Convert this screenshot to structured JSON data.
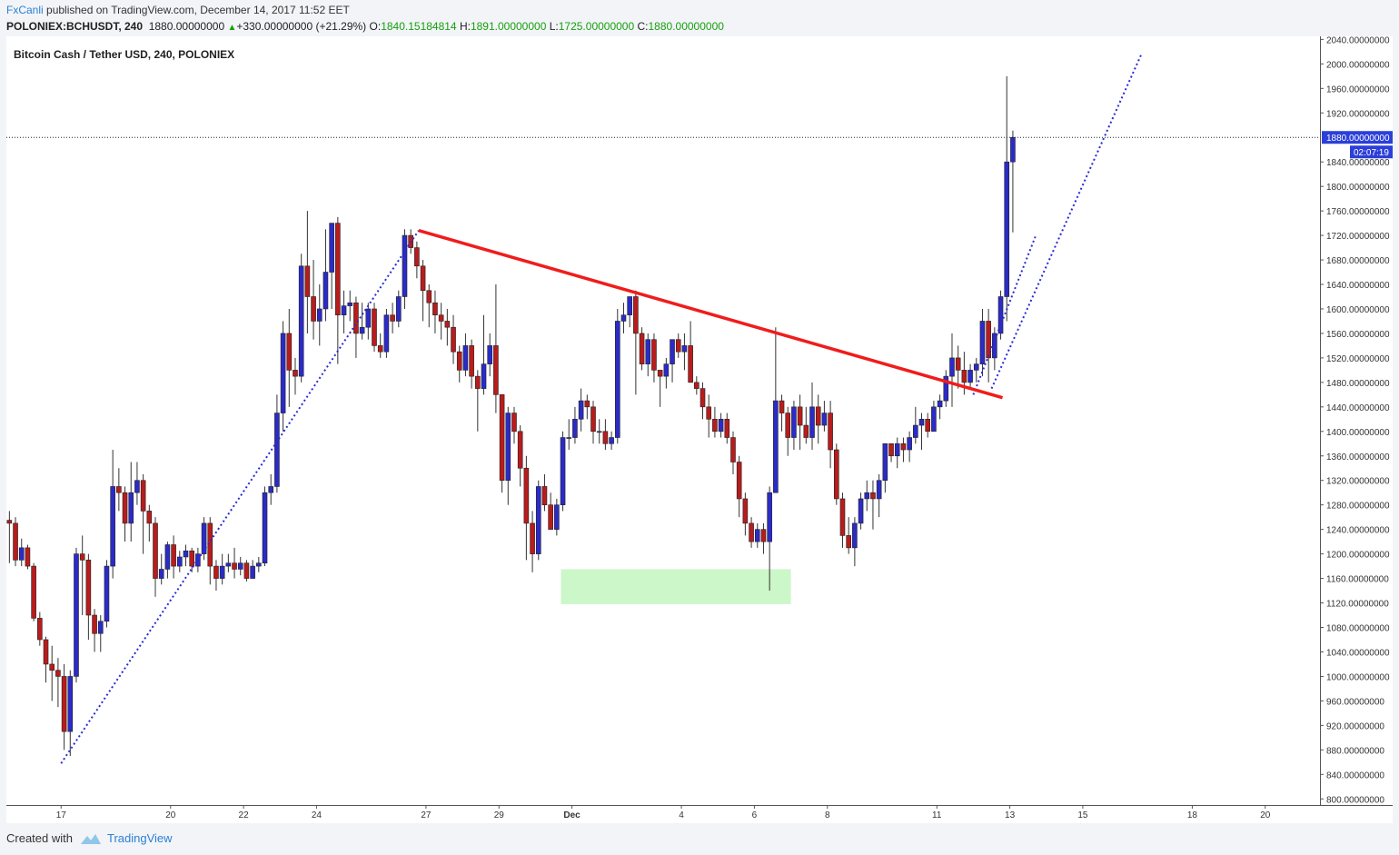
{
  "header": {
    "author": "FxCanli",
    "published_text": "published on TradingView.com, December 14, 2017 11:52 EET",
    "symbol": "POLONIEX:BCHUSDT, 240",
    "last": "1880.00000000",
    "change": "+330.00000000 (+21.29%)",
    "open_label": "O:",
    "open": "1840.15184814",
    "high_label": "H:",
    "high": "1891.00000000",
    "low_label": "L:",
    "low": "1725.00000000",
    "close_label": "C:",
    "close": "1880.00000000"
  },
  "footer": {
    "created_with": "Created with",
    "brand": "TradingView"
  },
  "colors": {
    "up": "#2b2bc8",
    "down": "#b81c1c",
    "trendline": "#f01c1c",
    "dotted": "#2a2ad6",
    "zone": "#ccf7c8",
    "price_tag": "#2c3fd8"
  },
  "chart_data": {
    "type": "candlestick",
    "title": "Bitcoin Cash / Tether USD, 240, POLONIEX",
    "xlabel": "",
    "ylabel": "",
    "ylim": [
      790,
      2045
    ],
    "x_range_days": [
      15.5,
      51.5
    ],
    "x_ticks": [
      {
        "label": "17",
        "d": 17
      },
      {
        "label": "20",
        "d": 20
      },
      {
        "label": "22",
        "d": 22
      },
      {
        "label": "24",
        "d": 24
      },
      {
        "label": "27",
        "d": 27
      },
      {
        "label": "29",
        "d": 29
      },
      {
        "label": "Dec",
        "d": 31
      },
      {
        "label": "4",
        "d": 34
      },
      {
        "label": "6",
        "d": 36
      },
      {
        "label": "8",
        "d": 38
      },
      {
        "label": "11",
        "d": 41
      },
      {
        "label": "13",
        "d": 43
      },
      {
        "label": "15",
        "d": 45
      },
      {
        "label": "18",
        "d": 48
      },
      {
        "label": "20",
        "d": 50
      }
    ],
    "y_ticks": [
      "2040.00000000",
      "2000.00000000",
      "1960.00000000",
      "1920.00000000",
      "1840.00000000",
      "1800.00000000",
      "1760.00000000",
      "1720.00000000",
      "1680.00000000",
      "1640.00000000",
      "1600.00000000",
      "1560.00000000",
      "1520.00000000",
      "1480.00000000",
      "1440.00000000",
      "1400.00000000",
      "1360.00000000",
      "1320.00000000",
      "1280.00000000",
      "1240.00000000",
      "1200.00000000",
      "1160.00000000",
      "1120.00000000",
      "1080.00000000",
      "1040.00000000",
      "1000.00000000",
      "960.00000000",
      "920.00000000",
      "880.00000000",
      "840.00000000",
      "800.00000000"
    ],
    "last_price": 1880,
    "last_price_label": "1880.00000000",
    "countdown": "02:07:19",
    "candles": [
      [
        1255,
        1250,
        1270,
        1185
      ],
      [
        1250,
        1190,
        1260,
        1180
      ],
      [
        1190,
        1210,
        1225,
        1180
      ],
      [
        1210,
        1180,
        1215,
        1175
      ],
      [
        1180,
        1095,
        1185,
        1090
      ],
      [
        1095,
        1060,
        1105,
        1050
      ],
      [
        1060,
        1020,
        1065,
        990
      ],
      [
        1020,
        1010,
        1050,
        960
      ],
      [
        1010,
        1000,
        1030,
        950
      ],
      [
        1000,
        910,
        1020,
        880
      ],
      [
        910,
        1000,
        1010,
        870
      ],
      [
        1000,
        1200,
        1210,
        990
      ],
      [
        1200,
        1190,
        1230,
        1100
      ],
      [
        1190,
        1100,
        1200,
        1060
      ],
      [
        1100,
        1070,
        1110,
        1040
      ],
      [
        1070,
        1090,
        1100,
        1040
      ],
      [
        1090,
        1180,
        1190,
        1080
      ],
      [
        1180,
        1310,
        1370,
        1160
      ],
      [
        1310,
        1300,
        1340,
        1270
      ],
      [
        1300,
        1250,
        1310,
        1220
      ],
      [
        1250,
        1300,
        1350,
        1220
      ],
      [
        1300,
        1320,
        1350,
        1280
      ],
      [
        1320,
        1270,
        1330,
        1200
      ],
      [
        1270,
        1250,
        1280,
        1220
      ],
      [
        1250,
        1160,
        1260,
        1130
      ],
      [
        1160,
        1175,
        1200,
        1150
      ],
      [
        1175,
        1215,
        1220,
        1160
      ],
      [
        1215,
        1180,
        1230,
        1160
      ],
      [
        1180,
        1195,
        1205,
        1170
      ],
      [
        1195,
        1205,
        1215,
        1180
      ],
      [
        1205,
        1180,
        1210,
        1170
      ],
      [
        1180,
        1200,
        1210,
        1170
      ],
      [
        1200,
        1250,
        1260,
        1190
      ],
      [
        1250,
        1180,
        1260,
        1150
      ],
      [
        1180,
        1160,
        1190,
        1140
      ],
      [
        1160,
        1180,
        1200,
        1150
      ],
      [
        1180,
        1185,
        1200,
        1170
      ],
      [
        1185,
        1175,
        1210,
        1160
      ],
      [
        1175,
        1185,
        1195,
        1165
      ],
      [
        1185,
        1160,
        1190,
        1155
      ],
      [
        1160,
        1180,
        1190,
        1160
      ],
      [
        1180,
        1185,
        1195,
        1170
      ],
      [
        1185,
        1300,
        1310,
        1180
      ],
      [
        1300,
        1310,
        1330,
        1280
      ],
      [
        1310,
        1430,
        1460,
        1300
      ],
      [
        1430,
        1560,
        1580,
        1400
      ],
      [
        1560,
        1500,
        1600,
        1440
      ],
      [
        1500,
        1490,
        1520,
        1460
      ],
      [
        1490,
        1670,
        1690,
        1480
      ],
      [
        1670,
        1620,
        1760,
        1560
      ],
      [
        1620,
        1580,
        1680,
        1550
      ],
      [
        1580,
        1600,
        1640,
        1540
      ],
      [
        1600,
        1660,
        1730,
        1580
      ],
      [
        1660,
        1740,
        1740,
        1600
      ],
      [
        1740,
        1590,
        1750,
        1510
      ],
      [
        1590,
        1605,
        1630,
        1560
      ],
      [
        1605,
        1610,
        1630,
        1580
      ],
      [
        1610,
        1560,
        1620,
        1520
      ],
      [
        1560,
        1570,
        1610,
        1550
      ],
      [
        1570,
        1600,
        1610,
        1550
      ],
      [
        1600,
        1540,
        1610,
        1530
      ],
      [
        1540,
        1530,
        1560,
        1520
      ],
      [
        1530,
        1590,
        1600,
        1520
      ],
      [
        1590,
        1580,
        1610,
        1560
      ],
      [
        1580,
        1620,
        1630,
        1570
      ],
      [
        1620,
        1720,
        1730,
        1600
      ],
      [
        1720,
        1700,
        1730,
        1690
      ],
      [
        1700,
        1670,
        1710,
        1650
      ],
      [
        1670,
        1630,
        1680,
        1580
      ],
      [
        1630,
        1610,
        1640,
        1570
      ],
      [
        1610,
        1590,
        1630,
        1560
      ],
      [
        1590,
        1580,
        1610,
        1550
      ],
      [
        1580,
        1570,
        1600,
        1540
      ],
      [
        1570,
        1530,
        1590,
        1510
      ],
      [
        1530,
        1500,
        1540,
        1480
      ],
      [
        1500,
        1540,
        1560,
        1490
      ],
      [
        1540,
        1490,
        1550,
        1470
      ],
      [
        1490,
        1470,
        1500,
        1400
      ],
      [
        1470,
        1510,
        1590,
        1460
      ],
      [
        1510,
        1540,
        1560,
        1490
      ],
      [
        1540,
        1460,
        1640,
        1430
      ],
      [
        1460,
        1320,
        1460,
        1300
      ],
      [
        1320,
        1430,
        1440,
        1280
      ],
      [
        1430,
        1400,
        1440,
        1380
      ],
      [
        1400,
        1340,
        1410,
        1310
      ],
      [
        1340,
        1250,
        1360,
        1190
      ],
      [
        1250,
        1200,
        1270,
        1170
      ],
      [
        1200,
        1310,
        1320,
        1190
      ],
      [
        1310,
        1280,
        1330,
        1270
      ],
      [
        1280,
        1240,
        1300,
        1240
      ],
      [
        1240,
        1280,
        1290,
        1230
      ],
      [
        1280,
        1390,
        1400,
        1270
      ],
      [
        1390,
        1390,
        1420,
        1370
      ],
      [
        1390,
        1420,
        1440,
        1380
      ],
      [
        1420,
        1450,
        1470,
        1400
      ],
      [
        1450,
        1440,
        1460,
        1420
      ],
      [
        1440,
        1400,
        1450,
        1380
      ],
      [
        1400,
        1400,
        1420,
        1380
      ],
      [
        1400,
        1380,
        1420,
        1370
      ],
      [
        1380,
        1390,
        1400,
        1370
      ],
      [
        1390,
        1580,
        1600,
        1380
      ],
      [
        1580,
        1590,
        1610,
        1560
      ],
      [
        1590,
        1620,
        1620,
        1570
      ],
      [
        1620,
        1560,
        1630,
        1460
      ],
      [
        1560,
        1510,
        1570,
        1500
      ],
      [
        1510,
        1550,
        1560,
        1490
      ],
      [
        1550,
        1500,
        1560,
        1480
      ],
      [
        1500,
        1490,
        1500,
        1440
      ],
      [
        1490,
        1510,
        1520,
        1470
      ],
      [
        1510,
        1550,
        1550,
        1480
      ],
      [
        1550,
        1530,
        1560,
        1520
      ],
      [
        1530,
        1540,
        1560,
        1500
      ],
      [
        1540,
        1480,
        1580,
        1480
      ],
      [
        1480,
        1470,
        1490,
        1460
      ],
      [
        1470,
        1440,
        1480,
        1420
      ],
      [
        1440,
        1420,
        1460,
        1390
      ],
      [
        1420,
        1400,
        1440,
        1390
      ],
      [
        1400,
        1420,
        1430,
        1390
      ],
      [
        1420,
        1390,
        1430,
        1380
      ],
      [
        1390,
        1350,
        1400,
        1330
      ],
      [
        1350,
        1290,
        1360,
        1260
      ],
      [
        1290,
        1250,
        1300,
        1230
      ],
      [
        1250,
        1220,
        1260,
        1210
      ],
      [
        1220,
        1240,
        1250,
        1210
      ],
      [
        1240,
        1220,
        1250,
        1200
      ],
      [
        1220,
        1300,
        1310,
        1140
      ],
      [
        1300,
        1450,
        1570,
        1300
      ],
      [
        1450,
        1430,
        1460,
        1400
      ],
      [
        1430,
        1390,
        1440,
        1360
      ],
      [
        1390,
        1440,
        1450,
        1370
      ],
      [
        1440,
        1410,
        1460,
        1370
      ],
      [
        1410,
        1390,
        1440,
        1380
      ],
      [
        1390,
        1440,
        1480,
        1370
      ],
      [
        1440,
        1410,
        1460,
        1380
      ],
      [
        1410,
        1430,
        1450,
        1400
      ],
      [
        1430,
        1370,
        1450,
        1340
      ],
      [
        1370,
        1290,
        1380,
        1280
      ],
      [
        1290,
        1230,
        1300,
        1210
      ],
      [
        1230,
        1210,
        1260,
        1200
      ],
      [
        1210,
        1250,
        1260,
        1180
      ],
      [
        1250,
        1290,
        1300,
        1240
      ],
      [
        1290,
        1300,
        1320,
        1270
      ],
      [
        1300,
        1290,
        1320,
        1240
      ],
      [
        1290,
        1320,
        1330,
        1260
      ],
      [
        1320,
        1380,
        1380,
        1300
      ],
      [
        1380,
        1360,
        1380,
        1350
      ],
      [
        1360,
        1380,
        1390,
        1340
      ],
      [
        1380,
        1370,
        1390,
        1350
      ],
      [
        1370,
        1390,
        1400,
        1350
      ],
      [
        1390,
        1410,
        1440,
        1380
      ],
      [
        1410,
        1420,
        1430,
        1370
      ],
      [
        1420,
        1400,
        1430,
        1390
      ],
      [
        1400,
        1440,
        1450,
        1400
      ],
      [
        1440,
        1450,
        1460,
        1420
      ],
      [
        1450,
        1490,
        1500,
        1440
      ],
      [
        1490,
        1520,
        1560,
        1440
      ],
      [
        1520,
        1500,
        1540,
        1470
      ],
      [
        1500,
        1480,
        1530,
        1460
      ],
      [
        1480,
        1500,
        1510,
        1470
      ],
      [
        1500,
        1510,
        1520,
        1480
      ],
      [
        1510,
        1580,
        1600,
        1490
      ],
      [
        1580,
        1520,
        1600,
        1480
      ],
      [
        1520,
        1560,
        1570,
        1500
      ],
      [
        1560,
        1620,
        1630,
        1550
      ],
      [
        1620,
        1840,
        1980,
        1580
      ],
      [
        1840,
        1880,
        1891,
        1725
      ]
    ]
  }
}
